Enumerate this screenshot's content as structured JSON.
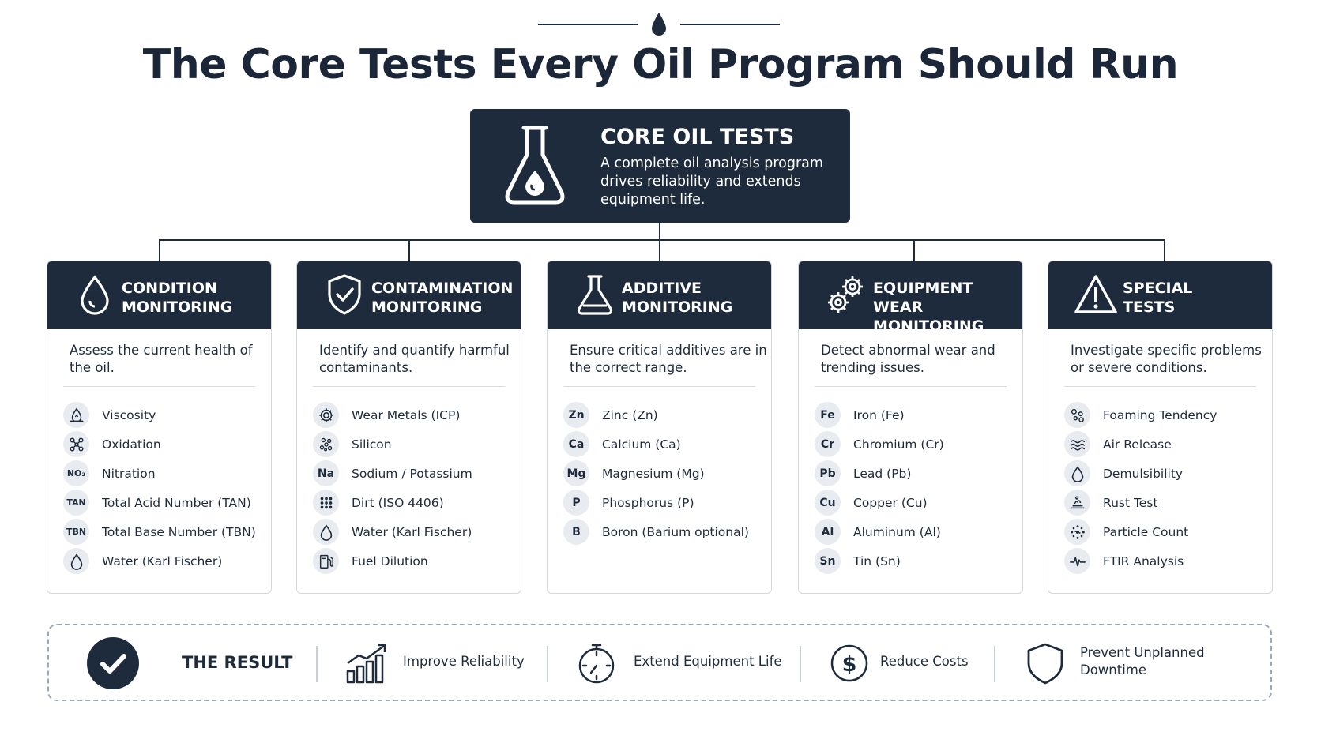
{
  "title": "The Core Tests Every Oil Program Should Run",
  "core": {
    "title": "CORE OIL TESTS",
    "description": "A complete oil analysis program drives reliability and extends equipment life."
  },
  "columns": [
    {
      "title_line1": "CONDITION",
      "title_line2": "MONITORING",
      "icon": "drop-icon",
      "description": "Assess the current health of the oil.",
      "items": [
        {
          "badge": "",
          "icon": "viscosity-icon",
          "label": "Viscosity"
        },
        {
          "badge": "",
          "icon": "molecule-icon",
          "label": "Oxidation"
        },
        {
          "badge": "NO₂",
          "label": "Nitration"
        },
        {
          "badge": "TAN",
          "label": "Total Acid Number (TAN)"
        },
        {
          "badge": "TBN",
          "label": "Total Base Number (TBN)"
        },
        {
          "badge": "",
          "icon": "drop-icon",
          "label": "Water (Karl Fischer)"
        }
      ]
    },
    {
      "title_line1": "CONTAMINATION",
      "title_line2": "MONITORING",
      "icon": "shield-check-icon",
      "description": "Identify and quantify harmful contaminants.",
      "items": [
        {
          "badge": "",
          "icon": "gear-icon",
          "label": "Wear Metals (ICP)"
        },
        {
          "badge": "",
          "icon": "particles-icon",
          "label": "Silicon"
        },
        {
          "badge": "Na",
          "label": "Sodium / Potassium"
        },
        {
          "badge": "",
          "icon": "dots-grid-icon",
          "label": "Dirt (ISO 4406)"
        },
        {
          "badge": "",
          "icon": "drop-icon",
          "label": "Water (Karl Fischer)"
        },
        {
          "badge": "",
          "icon": "fuel-pump-icon",
          "label": "Fuel Dilution"
        }
      ]
    },
    {
      "title_line1": "ADDITIVE",
      "title_line2": "MONITORING",
      "icon": "flask-icon",
      "description": "Ensure critical additives are in the correct range.",
      "items": [
        {
          "badge": "Zn",
          "label": "Zinc (Zn)"
        },
        {
          "badge": "Ca",
          "label": "Calcium (Ca)"
        },
        {
          "badge": "Mg",
          "label": "Magnesium (Mg)"
        },
        {
          "badge": "P",
          "label": "Phosphorus (P)"
        },
        {
          "badge": "B",
          "label": "Boron (Barium optional)"
        }
      ]
    },
    {
      "title_line1": "EQUIPMENT WEAR",
      "title_line2": "MONITORING",
      "icon": "gears-icon",
      "description": "Detect abnormal wear and trending issues.",
      "items": [
        {
          "badge": "Fe",
          "label": "Iron (Fe)"
        },
        {
          "badge": "Cr",
          "label": "Chromium (Cr)"
        },
        {
          "badge": "Pb",
          "label": "Lead (Pb)"
        },
        {
          "badge": "Cu",
          "label": "Copper (Cu)"
        },
        {
          "badge": "Al",
          "label": "Aluminum (Al)"
        },
        {
          "badge": "Sn",
          "label": "Tin (Sn)"
        }
      ]
    },
    {
      "title_line1": "SPECIAL",
      "title_line2": "TESTS",
      "icon": "warning-icon",
      "description": "Investigate specific problems or severe conditions.",
      "items": [
        {
          "badge": "",
          "icon": "bubbles-icon",
          "label": "Foaming Tendency"
        },
        {
          "badge": "",
          "icon": "waves-icon",
          "label": "Air Release"
        },
        {
          "badge": "",
          "icon": "drop-icon",
          "label": "Demulsibility"
        },
        {
          "badge": "",
          "icon": "rust-icon",
          "label": "Rust Test"
        },
        {
          "badge": "",
          "icon": "particle-count-icon",
          "label": "Particle Count"
        },
        {
          "badge": "",
          "icon": "pulse-icon",
          "label": "FTIR Analysis"
        }
      ]
    }
  ],
  "result": {
    "title": "THE RESULT",
    "items": [
      {
        "icon": "bar-chart-up-icon",
        "label": "Improve Reliability"
      },
      {
        "icon": "stopwatch-icon",
        "label": "Extend Equipment Life"
      },
      {
        "icon": "dollar-icon",
        "label": "Reduce Costs"
      },
      {
        "icon": "shield-icon",
        "label": "Prevent Unplanned Downtime"
      }
    ]
  },
  "colors": {
    "navy": "#1e2b3d",
    "badge_bg": "#e8ebef",
    "border": "#d3d8de"
  }
}
